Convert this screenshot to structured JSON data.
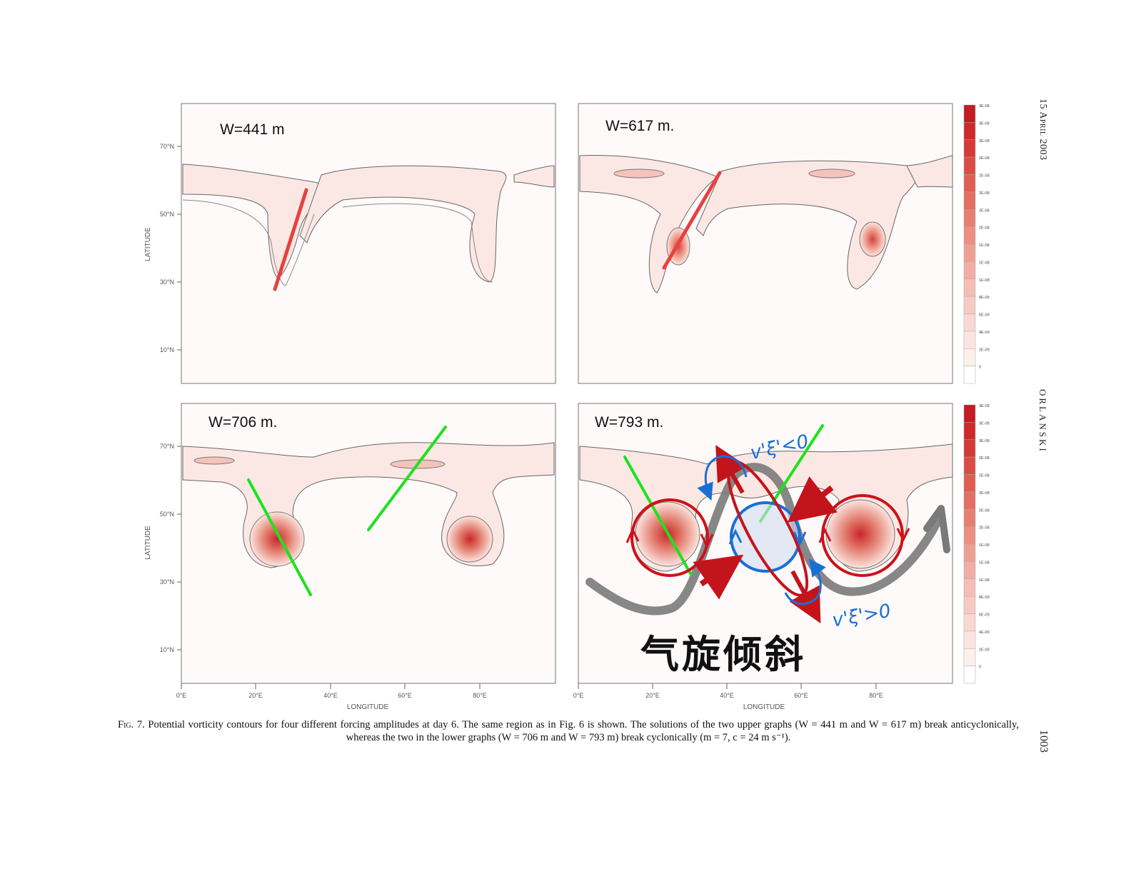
{
  "header": {
    "date": "15 April 2003",
    "author": "ORLANSKI",
    "page_number": "1003"
  },
  "panels": [
    {
      "title": "W=441 m"
    },
    {
      "title": "W=617 m."
    },
    {
      "title": "W=706 m."
    },
    {
      "title": "W=793 m."
    }
  ],
  "axes": {
    "ylabel": "LATITUDE",
    "xlabel": "LONGITUDE",
    "yticks": [
      "70°N",
      "50°N",
      "30°N",
      "10°N"
    ],
    "xticks_left": [
      "0°E",
      "20°E",
      "40°E",
      "60°E",
      "80°E"
    ],
    "xticks_right": [
      "0°E",
      "20°E",
      "40°E",
      "60°E",
      "80°E"
    ]
  },
  "colorbar": {
    "labels": [
      "3E-08",
      "3E-08",
      "3E-08",
      "2E-08",
      "2E-08",
      "2E-08",
      "2E-08",
      "2E-08",
      "1E-08",
      "1E-08",
      "1E-08",
      "8E-09",
      "6E-09",
      "4E-09",
      "2E-09",
      "0"
    ],
    "colors": [
      "#c21c24",
      "#cd2a2c",
      "#d43a37",
      "#da4c45",
      "#df5d53",
      "#e36e62",
      "#e77f72",
      "#eb8f83",
      "#ee9f94",
      "#f1aea4",
      "#f4bdb5",
      "#f7cbc4",
      "#f9d8d2",
      "#fbe4df",
      "#fdf0ec",
      "#ffffff"
    ]
  },
  "annotations": {
    "upper": "v'ξ'<0",
    "lower": "v'ξ'>0",
    "handwritten": "气旋倾斜",
    "colors": {
      "red": "#e8413f",
      "green": "#1de21d",
      "blue": "#1a6fd6",
      "darkred": "#c4141b",
      "gray": "#7a7a7a"
    }
  },
  "caption": {
    "prefix": "Fig. 7.",
    "text": "Potential vorticity contours for four different forcing amplitudes at day 6. The same region as in Fig. 6 is shown. The solutions of the two upper graphs (W = 441 m and W = 617 m) break anticyclonically, whereas the two in the lower graphs (W = 706 m and W = 793 m) break cyclonically (m = 7, c = 24 m s⁻¹)."
  }
}
